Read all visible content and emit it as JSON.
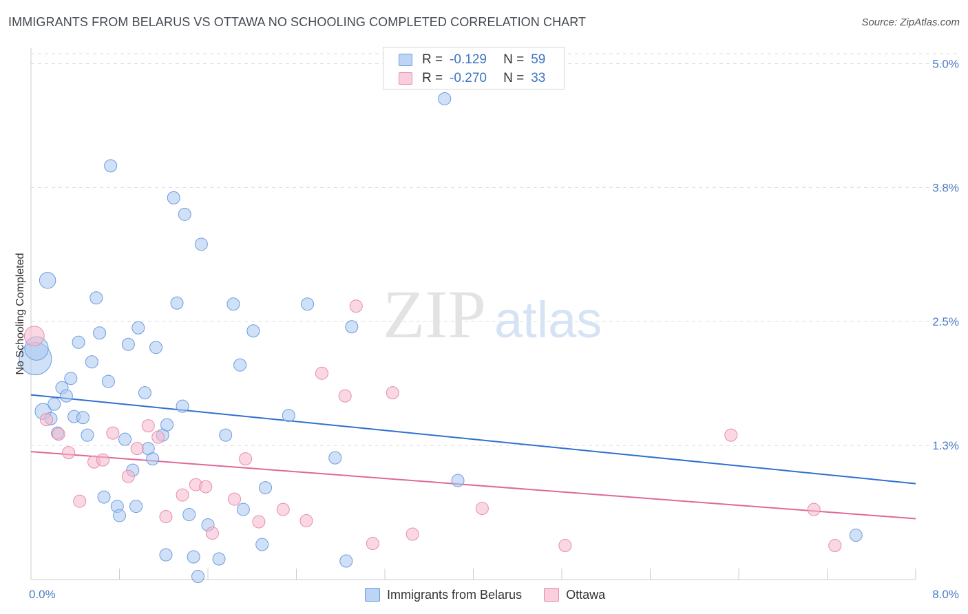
{
  "header": {
    "title": "IMMIGRANTS FROM BELARUS VS OTTAWA NO SCHOOLING COMPLETED CORRELATION CHART",
    "source": "Source: ZipAtlas.com"
  },
  "watermark": {
    "zip": "ZIP",
    "atlas": "atlas"
  },
  "stats_legend": [
    {
      "r_label": "R =",
      "r_value": "-0.129",
      "n_label": "N =",
      "n_value": "59"
    },
    {
      "r_label": "R =",
      "r_value": "-0.270",
      "n_label": "N =",
      "n_value": "33"
    }
  ],
  "colors": {
    "blue_fill": "#a9c8f0",
    "blue_stroke": "#6b9be0",
    "blue_line": "#2f6fcf",
    "pink_fill": "#f6b8cc",
    "pink_stroke": "#e98aa8",
    "pink_line": "#e0679a",
    "grid": "#dddddd",
    "tick_text": "#4a7cc4"
  },
  "chart_data": {
    "type": "scatter",
    "title": "IMMIGRANTS FROM BELARUS VS OTTAWA NO SCHOOLING COMPLETED CORRELATION CHART",
    "xlabel": "",
    "ylabel": "No Schooling Completed",
    "x_unit": "%",
    "y_unit": "%",
    "xlim": [
      0,
      8.0
    ],
    "ylim": [
      0,
      5.15
    ],
    "x_tick_labels": [
      "0.0%",
      "8.0%"
    ],
    "y_ticks": [
      1.3,
      2.5,
      3.8,
      5.0
    ],
    "y_tick_labels": [
      "1.3%",
      "2.5%",
      "3.8%",
      "5.0%"
    ],
    "grid": true,
    "legend_position": "bottom-center",
    "series": [
      {
        "name": "Immigrants from Belarus",
        "color": "#a9c8f0",
        "trend": {
          "x": [
            0.0,
            8.0
          ],
          "y": [
            1.79,
            0.93
          ]
        },
        "points": [
          [
            0.04,
            2.14,
            2.6
          ],
          [
            0.05,
            2.24,
            1.9
          ],
          [
            0.11,
            1.63,
            1.3
          ],
          [
            0.15,
            2.9,
            1.3
          ],
          [
            0.21,
            1.7,
            1.0
          ],
          [
            0.24,
            1.42,
            1.0
          ],
          [
            0.28,
            1.86,
            1.0
          ],
          [
            0.32,
            1.78,
            1.0
          ],
          [
            0.36,
            1.95,
            1.0
          ],
          [
            0.39,
            1.58,
            1.0
          ],
          [
            0.43,
            2.3,
            1.0
          ],
          [
            0.47,
            1.57,
            1.0
          ],
          [
            0.51,
            1.4,
            1.0
          ],
          [
            0.55,
            2.11,
            1.0
          ],
          [
            0.59,
            2.73,
            1.0
          ],
          [
            0.62,
            2.39,
            1.0
          ],
          [
            0.66,
            0.8,
            1.0
          ],
          [
            0.7,
            1.92,
            1.0
          ],
          [
            0.72,
            4.01,
            1.0
          ],
          [
            0.78,
            0.71,
            1.0
          ],
          [
            0.8,
            0.62,
            1.0
          ],
          [
            0.85,
            1.36,
            1.0
          ],
          [
            0.88,
            2.28,
            1.0
          ],
          [
            0.92,
            1.06,
            1.0
          ],
          [
            0.95,
            0.71,
            1.0
          ],
          [
            0.97,
            2.44,
            1.0
          ],
          [
            1.03,
            1.81,
            1.0
          ],
          [
            1.06,
            1.27,
            1.0
          ],
          [
            1.1,
            1.17,
            1.0
          ],
          [
            1.13,
            2.25,
            1.0
          ],
          [
            1.19,
            1.4,
            1.0
          ],
          [
            1.23,
            1.5,
            1.0
          ],
          [
            1.22,
            0.24,
            1.0
          ],
          [
            1.29,
            3.7,
            1.0
          ],
          [
            1.32,
            2.68,
            1.0
          ],
          [
            1.37,
            1.68,
            1.0
          ],
          [
            1.39,
            3.54,
            1.0
          ],
          [
            1.43,
            0.63,
            1.0
          ],
          [
            1.47,
            0.22,
            1.0
          ],
          [
            1.51,
            0.03,
            1.0
          ],
          [
            1.54,
            3.25,
            1.0
          ],
          [
            1.6,
            0.53,
            1.0
          ],
          [
            1.7,
            0.2,
            1.0
          ],
          [
            1.76,
            1.4,
            1.0
          ],
          [
            1.83,
            2.67,
            1.0
          ],
          [
            1.89,
            2.08,
            1.0
          ],
          [
            1.92,
            0.68,
            1.0
          ],
          [
            2.01,
            2.41,
            1.0
          ],
          [
            2.09,
            0.34,
            1.0
          ],
          [
            2.12,
            0.89,
            1.0
          ],
          [
            2.33,
            1.59,
            1.0
          ],
          [
            2.5,
            2.67,
            1.0
          ],
          [
            2.75,
            1.18,
            1.0
          ],
          [
            2.85,
            0.18,
            1.0
          ],
          [
            2.9,
            2.45,
            1.0
          ],
          [
            3.74,
            4.66,
            1.0
          ],
          [
            3.86,
            0.96,
            1.0
          ],
          [
            7.46,
            0.43,
            1.0
          ],
          [
            0.18,
            1.56,
            1.0
          ]
        ]
      },
      {
        "name": "Ottawa",
        "color": "#f6b8cc",
        "trend": {
          "x": [
            0.0,
            8.0
          ],
          "y": [
            1.24,
            0.59
          ]
        },
        "points": [
          [
            0.03,
            2.36,
            1.6
          ],
          [
            0.14,
            1.55,
            1.0
          ],
          [
            0.25,
            1.41,
            1.0
          ],
          [
            0.34,
            1.23,
            1.0
          ],
          [
            0.44,
            0.76,
            1.0
          ],
          [
            0.57,
            1.14,
            1.0
          ],
          [
            0.65,
            1.16,
            1.0
          ],
          [
            0.74,
            1.42,
            1.0
          ],
          [
            0.88,
            1.0,
            1.0
          ],
          [
            0.96,
            1.27,
            1.0
          ],
          [
            1.06,
            1.49,
            1.0
          ],
          [
            1.15,
            1.38,
            1.0
          ],
          [
            1.22,
            0.61,
            1.0
          ],
          [
            1.37,
            0.82,
            1.0
          ],
          [
            1.49,
            0.92,
            1.0
          ],
          [
            1.58,
            0.9,
            1.0
          ],
          [
            1.64,
            0.45,
            1.0
          ],
          [
            1.84,
            0.78,
            1.0
          ],
          [
            1.94,
            1.17,
            1.0
          ],
          [
            2.06,
            0.56,
            1.0
          ],
          [
            2.28,
            0.68,
            1.0
          ],
          [
            2.49,
            0.57,
            1.0
          ],
          [
            2.63,
            2.0,
            1.0
          ],
          [
            2.84,
            1.78,
            1.0
          ],
          [
            2.94,
            2.65,
            1.0
          ],
          [
            3.09,
            0.35,
            1.0
          ],
          [
            3.27,
            1.81,
            1.0
          ],
          [
            3.45,
            0.44,
            1.0
          ],
          [
            4.08,
            0.69,
            1.0
          ],
          [
            4.83,
            0.33,
            1.0
          ],
          [
            6.33,
            1.4,
            1.0
          ],
          [
            7.08,
            0.68,
            1.0
          ],
          [
            7.27,
            0.33,
            1.0
          ]
        ]
      }
    ]
  }
}
